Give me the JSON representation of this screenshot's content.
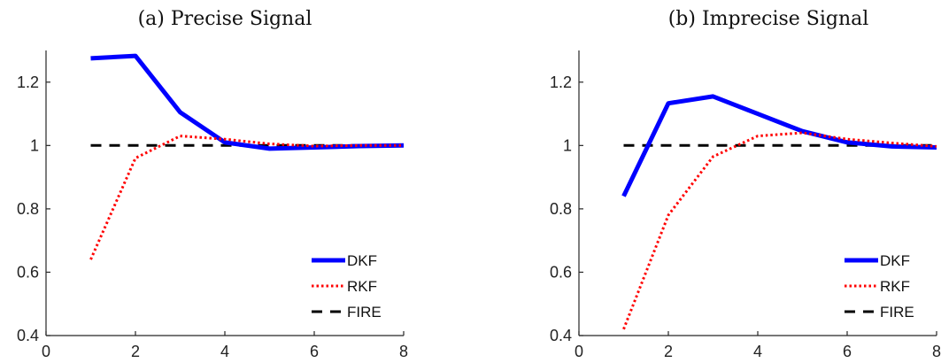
{
  "chart_data": [
    {
      "type": "line",
      "title": "(a) Precise Signal",
      "xlabel": "",
      "ylabel": "",
      "xlim": [
        0,
        8
      ],
      "ylim": [
        0.4,
        1.3
      ],
      "xticks": [
        "0",
        "2",
        "4",
        "6",
        "8"
      ],
      "yticks": [
        "0.4",
        "0.6",
        "0.8",
        "1",
        "1.2"
      ],
      "legend_position": "bottom-right",
      "grid": false,
      "series": [
        {
          "name": "DKF",
          "color": "#0000ff",
          "style": "solid",
          "x": [
            1,
            2,
            3,
            4,
            5,
            6,
            7,
            8
          ],
          "y": [
            1.275,
            1.283,
            1.105,
            1.01,
            0.99,
            0.994,
            0.998,
            1.0
          ]
        },
        {
          "name": "RKF",
          "color": "#ff0000",
          "style": "dotted",
          "x": [
            1,
            2,
            3,
            4,
            5,
            6,
            7,
            8
          ],
          "y": [
            0.64,
            0.96,
            1.03,
            1.02,
            1.005,
            0.998,
            1.0,
            1.0
          ]
        },
        {
          "name": "FIRE",
          "color": "#000000",
          "style": "dashed",
          "x": [
            1,
            2,
            3,
            4,
            5,
            6,
            7,
            8
          ],
          "y": [
            1,
            1,
            1,
            1,
            1,
            1,
            1,
            1
          ]
        }
      ]
    },
    {
      "type": "line",
      "title": "(b) Imprecise Signal",
      "xlabel": "",
      "ylabel": "",
      "xlim": [
        0,
        8
      ],
      "ylim": [
        0.4,
        1.3
      ],
      "xticks": [
        "0",
        "2",
        "4",
        "6",
        "8"
      ],
      "yticks": [
        "0.4",
        "0.6",
        "0.8",
        "1",
        "1.2"
      ],
      "legend_position": "bottom-right",
      "grid": false,
      "series": [
        {
          "name": "DKF",
          "color": "#0000ff",
          "style": "solid",
          "x": [
            1,
            2,
            3,
            4,
            5,
            6,
            7,
            8
          ],
          "y": [
            0.84,
            1.133,
            1.155,
            1.1,
            1.045,
            1.01,
            0.997,
            0.994
          ]
        },
        {
          "name": "RKF",
          "color": "#ff0000",
          "style": "dotted",
          "x": [
            1,
            2,
            3,
            4,
            5,
            6,
            7,
            8
          ],
          "y": [
            0.42,
            0.78,
            0.965,
            1.03,
            1.04,
            1.02,
            1.008,
            0.997
          ]
        },
        {
          "name": "FIRE",
          "color": "#000000",
          "style": "dashed",
          "x": [
            1,
            2,
            3,
            4,
            5,
            6,
            7,
            8
          ],
          "y": [
            1,
            1,
            1,
            1,
            1,
            1,
            1,
            1
          ]
        }
      ]
    }
  ]
}
